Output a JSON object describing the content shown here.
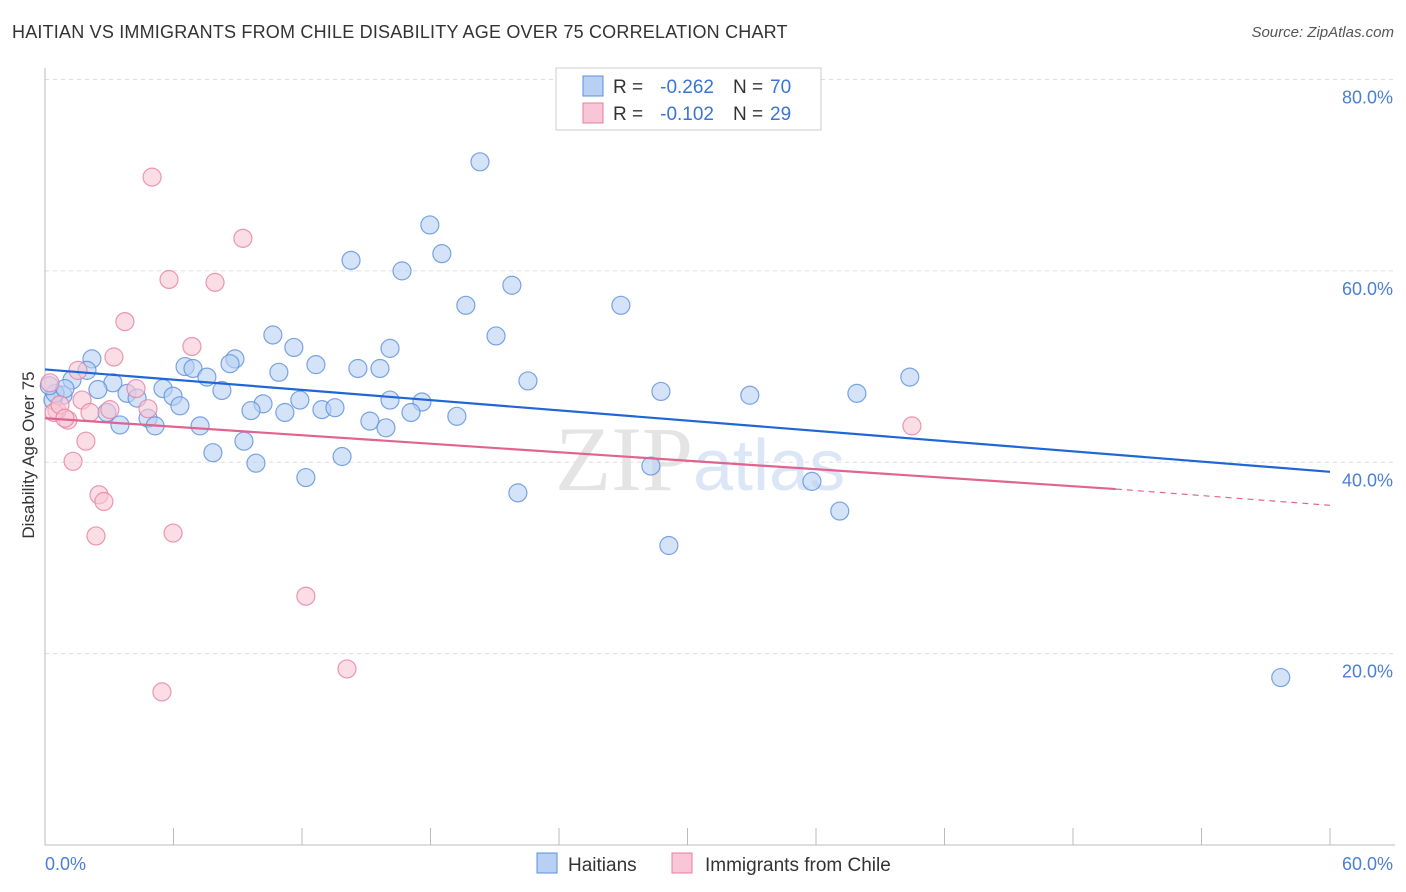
{
  "chart_data": {
    "type": "scatter",
    "title": "HAITIAN VS IMMIGRANTS FROM CHILE DISABILITY AGE OVER 75 CORRELATION CHART",
    "source": "Source: ZipAtlas.com",
    "xlabel": "",
    "ylabel": "Disability Age Over 75",
    "xlim": [
      0,
      60
    ],
    "ylim": [
      0,
      80
    ],
    "x_ticks": [
      "0.0%",
      "60.0%"
    ],
    "y_ticks": [
      {
        "v": 80,
        "label": "80.0%"
      },
      {
        "v": 60,
        "label": "60.0%"
      },
      {
        "v": 40,
        "label": "40.0%"
      },
      {
        "v": 20,
        "label": "20.0%"
      }
    ],
    "legend": {
      "placement": "top-center",
      "rows": [
        {
          "r_label": "R = ",
          "r": "-0.262",
          "n_label": "N = ",
          "n": "70"
        },
        {
          "r_label": "R = ",
          "r": "-0.102",
          "n_label": "N = ",
          "n": "29"
        }
      ]
    },
    "watermark": "ZIPatlas",
    "series": [
      {
        "name": "Haitians",
        "color": "#5b8fde",
        "fill": "#b8d0f4",
        "trend": [
          [
            0,
            49.7
          ],
          [
            60,
            39.0
          ]
        ],
        "points": [
          [
            20.31,
            71.4
          ],
          [
            17.97,
            64.8
          ],
          [
            18.53,
            61.8
          ],
          [
            14.29,
            61.1
          ],
          [
            16.67,
            60.0
          ],
          [
            21.8,
            58.5
          ],
          [
            19.65,
            56.4
          ],
          [
            26.89,
            56.4
          ],
          [
            10.64,
            53.3
          ],
          [
            21.06,
            53.2
          ],
          [
            11.62,
            52.0
          ],
          [
            2.19,
            50.8
          ],
          [
            8.87,
            50.8
          ],
          [
            16.11,
            51.9
          ],
          [
            6.54,
            50.0
          ],
          [
            6.91,
            49.8
          ],
          [
            8.64,
            50.3
          ],
          [
            12.65,
            50.2
          ],
          [
            14.61,
            49.8
          ],
          [
            15.64,
            49.8
          ],
          [
            10.92,
            49.4
          ],
          [
            1.96,
            49.6
          ],
          [
            7.56,
            48.9
          ],
          [
            1.26,
            48.6
          ],
          [
            3.17,
            48.3
          ],
          [
            22.55,
            48.5
          ],
          [
            40.38,
            48.9
          ],
          [
            5.51,
            47.7
          ],
          [
            2.47,
            47.6
          ],
          [
            8.26,
            47.5
          ],
          [
            3.83,
            47.2
          ],
          [
            28.76,
            47.4
          ],
          [
            32.91,
            47.0
          ],
          [
            37.91,
            47.2
          ],
          [
            0.84,
            47.0
          ],
          [
            0.37,
            46.5
          ],
          [
            4.3,
            46.7
          ],
          [
            5.98,
            46.9
          ],
          [
            10.18,
            46.1
          ],
          [
            11.9,
            46.5
          ],
          [
            6.3,
            45.9
          ],
          [
            9.62,
            45.4
          ],
          [
            12.93,
            45.5
          ],
          [
            13.54,
            45.7
          ],
          [
            11.2,
            45.2
          ],
          [
            2.89,
            45.2
          ],
          [
            16.11,
            46.5
          ],
          [
            17.6,
            46.3
          ],
          [
            17.09,
            45.2
          ],
          [
            19.23,
            44.8
          ],
          [
            4.81,
            44.6
          ],
          [
            3.5,
            43.9
          ],
          [
            5.14,
            43.8
          ],
          [
            7.24,
            43.8
          ],
          [
            15.17,
            44.3
          ],
          [
            15.92,
            43.6
          ],
          [
            9.29,
            42.2
          ],
          [
            7.84,
            41.0
          ],
          [
            9.85,
            39.9
          ],
          [
            13.87,
            40.6
          ],
          [
            28.29,
            39.6
          ],
          [
            12.18,
            38.4
          ],
          [
            35.81,
            38.0
          ],
          [
            22.08,
            36.8
          ],
          [
            37.11,
            34.9
          ],
          [
            29.13,
            31.3
          ],
          [
            57.7,
            17.5
          ],
          [
            0.47,
            47.2
          ],
          [
            0.2,
            48.0
          ],
          [
            0.93,
            47.7
          ]
        ]
      },
      {
        "name": "Immigrants from Chile",
        "color": "#e77fa0",
        "fill": "#f8c6d6",
        "trend": [
          [
            0,
            44.6
          ],
          [
            50,
            37.2
          ]
        ],
        "trend_dashed": [
          [
            50,
            37.2
          ],
          [
            60,
            35.5
          ]
        ],
        "points": [
          [
            5.0,
            69.8
          ],
          [
            9.24,
            63.4
          ],
          [
            5.79,
            59.1
          ],
          [
            7.94,
            58.8
          ],
          [
            3.73,
            54.7
          ],
          [
            6.86,
            52.1
          ],
          [
            3.22,
            51.0
          ],
          [
            1.54,
            49.6
          ],
          [
            4.25,
            47.7
          ],
          [
            1.73,
            46.5
          ],
          [
            3.03,
            45.5
          ],
          [
            4.81,
            45.6
          ],
          [
            2.1,
            45.2
          ],
          [
            1.07,
            44.4
          ],
          [
            0.56,
            45.4
          ],
          [
            0.42,
            45.2
          ],
          [
            1.91,
            42.2
          ],
          [
            1.31,
            40.1
          ],
          [
            2.52,
            36.6
          ],
          [
            2.75,
            35.9
          ],
          [
            2.38,
            32.3
          ],
          [
            5.98,
            32.6
          ],
          [
            12.18,
            26.0
          ],
          [
            14.1,
            18.4
          ],
          [
            5.46,
            16.0
          ],
          [
            40.48,
            43.8
          ],
          [
            0.23,
            48.3
          ],
          [
            0.7,
            46.0
          ],
          [
            0.93,
            44.6
          ]
        ]
      }
    ]
  }
}
